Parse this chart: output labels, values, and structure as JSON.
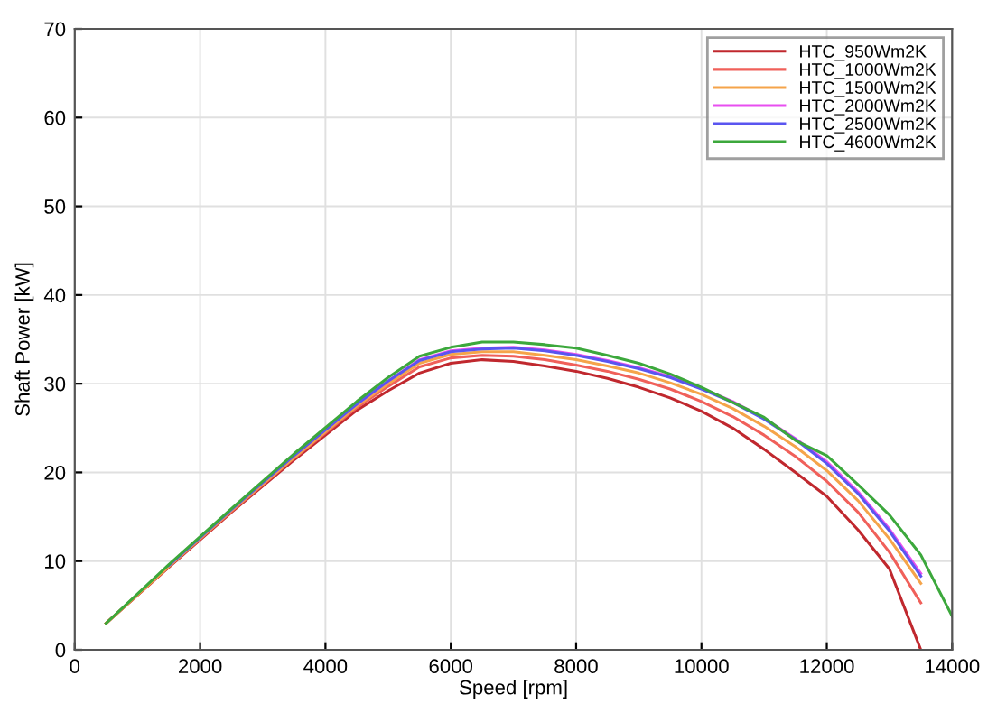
{
  "chart_data": {
    "type": "line",
    "xlabel": "Speed [rpm]",
    "ylabel": "Shaft Power [kW]",
    "x": [
      500,
      1500,
      2500,
      3500,
      4500,
      5000,
      5500,
      6000,
      6500,
      7000,
      7500,
      8000,
      8500,
      9000,
      9500,
      10000,
      10500,
      11000,
      11500,
      12000,
      12500,
      13000,
      13500
    ],
    "series": [
      {
        "name": "HTC_950Wm2K",
        "color": "#c0282e",
        "values": [
          3,
          9.3,
          15.5,
          21.4,
          27.0,
          29.2,
          31.2,
          32.3,
          32.7,
          32.5,
          32.0,
          31.4,
          30.6,
          29.6,
          28.4,
          26.9,
          25.0,
          22.6,
          20.0,
          17.3,
          13.5,
          9.1,
          0
        ]
      },
      {
        "name": "HTC_1000Wm2K",
        "color": "#f0605a",
        "values": [
          3,
          9.4,
          15.6,
          21.6,
          27.3,
          29.7,
          31.9,
          32.9,
          33.2,
          33.1,
          32.7,
          32.1,
          31.4,
          30.5,
          29.4,
          28.0,
          26.3,
          24.2,
          21.8,
          19.0,
          15.5,
          11.0,
          5.3
        ]
      },
      {
        "name": "HTC_1500Wm2K",
        "color": "#f5a44a",
        "values": [
          3,
          9.4,
          15.7,
          21.7,
          27.5,
          30.0,
          32.3,
          33.3,
          33.6,
          33.6,
          33.2,
          32.7,
          32.0,
          31.2,
          30.1,
          28.8,
          27.2,
          25.2,
          22.9,
          20.2,
          16.8,
          12.5,
          7.5
        ]
      },
      {
        "name": "HTC_2000Wm2K",
        "color": "#e84ff0",
        "values": [
          null,
          null,
          null,
          null,
          27.7,
          30.3,
          32.7,
          33.7,
          34.0,
          34.1,
          33.8,
          33.3,
          32.6,
          31.8,
          30.8,
          29.5,
          28.0,
          26.1,
          23.8,
          21.2,
          17.8,
          13.6,
          8.6
        ]
      },
      {
        "name": "HTC_2500Wm2K",
        "color": "#5a55f0",
        "values": [
          null,
          9.5,
          15.8,
          21.9,
          27.7,
          30.3,
          32.6,
          33.6,
          33.9,
          34.0,
          33.7,
          33.2,
          32.5,
          31.7,
          30.7,
          29.4,
          27.9,
          26.0,
          23.7,
          21.0,
          17.6,
          13.4,
          8.3
        ]
      },
      {
        "name": "HTC_4600Wm2K",
        "color": "#3ca83c",
        "x": [
          500,
          1500,
          2500,
          3500,
          4500,
          5000,
          5500,
          6000,
          6500,
          7000,
          7500,
          8000,
          8500,
          9000,
          9500,
          10000,
          10500,
          11000,
          11500,
          12000,
          12500,
          13000,
          13500,
          14000
        ],
        "values": [
          3,
          9.6,
          15.9,
          22.1,
          28.0,
          30.7,
          33.1,
          34.1,
          34.7,
          34.7,
          34.4,
          34.0,
          33.2,
          32.3,
          31.1,
          29.6,
          27.9,
          26.2,
          23.6,
          21.9,
          18.6,
          15.2,
          10.7,
          3.8
        ]
      }
    ],
    "xlim": [
      0,
      14000
    ],
    "xticks": [
      0,
      2000,
      4000,
      6000,
      8000,
      10000,
      12000,
      14000
    ],
    "ylim": [
      0,
      70
    ],
    "yticks": [
      0,
      10,
      20,
      30,
      40,
      50,
      60,
      70
    ],
    "grid": true,
    "legend": "top right",
    "line_style": "solid",
    "marker": "none"
  }
}
